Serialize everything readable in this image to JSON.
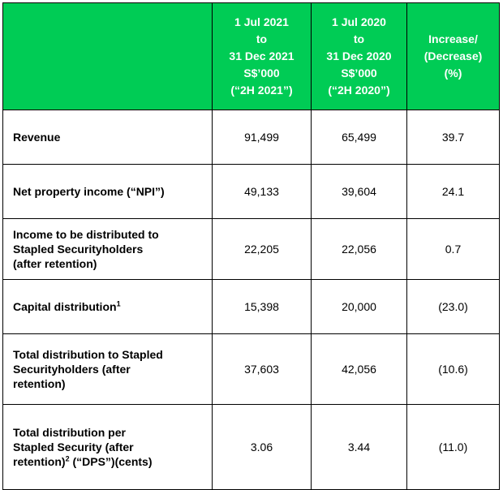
{
  "table": {
    "header": {
      "col1": [
        "1 Jul 2021",
        "to",
        "31 Dec 2021",
        "S$’000",
        "(“2H 2021”)"
      ],
      "col2": [
        "1 Jul 2020",
        "to",
        "31 Dec 2020",
        "S$’000",
        "(“2H 2020”)"
      ],
      "col3": [
        "Increase/",
        "(Decrease)",
        "(%)"
      ]
    },
    "rows": [
      {
        "label": [
          "Revenue"
        ],
        "values": [
          "91,499",
          "65,499",
          "39.7"
        ]
      },
      {
        "label": [
          "Net property income (“NPI”)"
        ],
        "values": [
          "49,133",
          "39,604",
          "24.1"
        ]
      },
      {
        "label": [
          "Income to be distributed to",
          "Stapled Securityholders",
          "(after retention)"
        ],
        "values": [
          "22,205",
          "22,056",
          "0.7"
        ]
      },
      {
        "label": [
          "Capital distribution"
        ],
        "footnote": "1",
        "values": [
          "15,398",
          "20,000",
          "(23.0)"
        ]
      },
      {
        "label": [
          "Total distribution to Stapled",
          "Securityholders (after",
          "retention)"
        ],
        "values": [
          "37,603",
          "42,056",
          "(10.6)"
        ]
      },
      {
        "label": [
          "Total distribution per",
          "Stapled Security (after"
        ],
        "label_last_pre": "retention)",
        "footnote": "2",
        "label_last_post": " (“DPS”)(cents)",
        "values": [
          "3.06",
          "3.44",
          "(11.0)"
        ]
      }
    ]
  },
  "colors": {
    "header_bg": "#00cc55",
    "header_text": "#ffffff",
    "border": "#000000"
  }
}
